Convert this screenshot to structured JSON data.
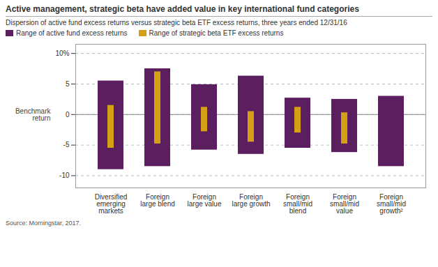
{
  "chart_data": {
    "type": "bar",
    "title": "Active management, strategic beta have added value in key international fund categories",
    "subtitle": "Dispersion of active fund excess returns versus strategic beta ETF excess returns, three years ended 12/31/16",
    "caption": "Source: Morningstar, 2017.",
    "categories": [
      "Diversified\nemerging\nmarkets",
      "Foreign\nlarge blend",
      "Foreign\nlarge value",
      "Foreign\nlarge growth",
      "Foreign\nsmall/mid\nblend",
      "Foreign\nsmall/mid\nvalue",
      "Foreign\nsmall/mid\ngrowth²"
    ],
    "series": [
      {
        "name": "Range of active fund excess returns",
        "color": "#5b1e5e",
        "low": [
          -9.0,
          -8.5,
          -5.8,
          -6.5,
          -5.5,
          -6.2,
          -8.5
        ],
        "high": [
          5.5,
          7.5,
          4.9,
          6.3,
          2.7,
          2.5,
          3.0
        ]
      },
      {
        "name": "Range of strategic beta ETF excess returns",
        "color": "#d4a017",
        "low": [
          -5.5,
          -4.8,
          -2.8,
          -4.5,
          -3.0,
          -4.8,
          null
        ],
        "high": [
          1.5,
          7.0,
          1.2,
          0.5,
          1.2,
          0.3,
          null
        ]
      }
    ],
    "ylim": [
      -12,
      11.5
    ],
    "yticks": [
      -10,
      -5,
      0,
      5,
      {
        "value": 10,
        "label": "10%"
      }
    ],
    "annotations": [
      {
        "text": "Benchmark\nreturn",
        "y": 0
      }
    ],
    "grid": true,
    "legend": "upper left"
  }
}
